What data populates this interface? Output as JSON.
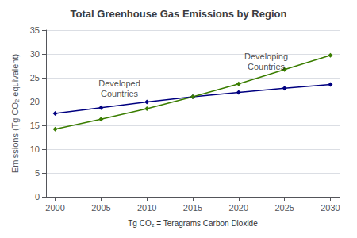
{
  "chart_data": {
    "type": "line",
    "title": "Total Greenhouse Gas Emissions by Region",
    "ylabel": "Emissions (Tg CO₂ equivalent)",
    "xlabel": "Tg CO₂ = Teragrams Carbon Dioxide",
    "x": [
      2000,
      2005,
      2010,
      2015,
      2020,
      2025,
      2030
    ],
    "series": [
      {
        "color": "#000080",
        "values": [
          17.5,
          18.7,
          19.9,
          21.0,
          21.9,
          22.8,
          23.6
        ]
      },
      {
        "color": "#3a7d00",
        "values": [
          14.2,
          16.3,
          18.5,
          21.0,
          23.7,
          26.7,
          29.7
        ]
      }
    ],
    "annotations": [
      {
        "text": "Developed\nCountries",
        "x": 2007,
        "y": 22.8
      },
      {
        "text": "Developing\nCountries",
        "x": 2023,
        "y": 28.5
      }
    ],
    "xlim": [
      1999,
      2031
    ],
    "xticks": [
      2000,
      2005,
      2010,
      2015,
      2020,
      2025,
      2030
    ],
    "ylim": [
      0,
      35
    ],
    "yticks": [
      0,
      5,
      10,
      15,
      20,
      25,
      30,
      35
    ],
    "grid": true,
    "marker": "diamond"
  }
}
